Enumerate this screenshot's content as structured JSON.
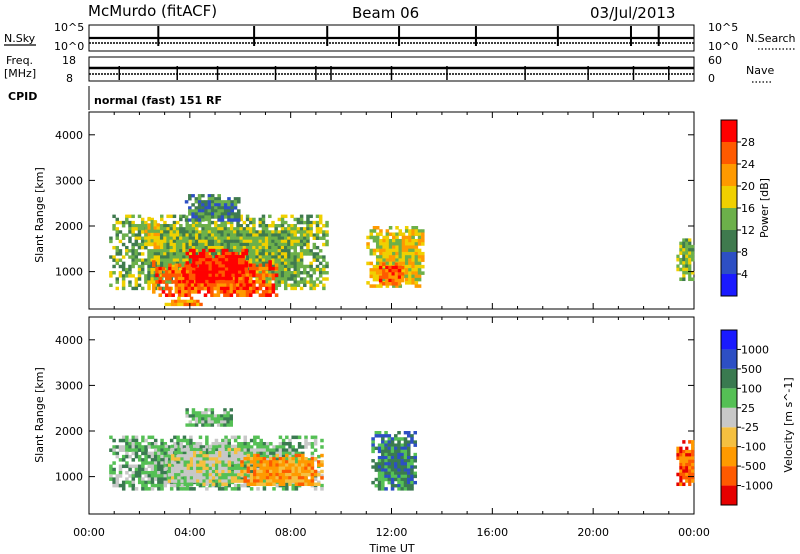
{
  "header": {
    "station": "McMurdo (fitACF)",
    "beam": "Beam 06",
    "date": "03/Jul/2013"
  },
  "status_panels": {
    "nsky_label": "N.Sky",
    "nsearch_label": "N.Search",
    "nsky_ticks": [
      "10^5",
      "10^0"
    ],
    "nsearch_ticks": [
      "10^5",
      "10^0"
    ],
    "freq_label": [
      "Freq.",
      "[MHz]"
    ],
    "freq_ticks": [
      "18",
      "8"
    ],
    "nave_label": "Nave",
    "nave_ticks": [
      "60",
      "0"
    ],
    "cpid_label": "CPID",
    "cpid_value": "normal (fast) 151 RF",
    "nsky_spike_hours": [
      2.75,
      6.55,
      9.45,
      12.3,
      15.35,
      18.6,
      21.5,
      22.6
    ],
    "nave_spike_hours": [
      1.2,
      3.5,
      5.1,
      7.4,
      9.0,
      9.6,
      12.0,
      14.2,
      17.3,
      19.8,
      21.6,
      23.0
    ]
  },
  "colors": {
    "power": [
      "#1a1aff",
      "#2d4fc4",
      "#3f7a4e",
      "#6cb04a",
      "#f0d000",
      "#ff9a00",
      "#ff5a00",
      "#ff0000"
    ],
    "velocity": [
      "#e60000",
      "#ff5a00",
      "#ff9a00",
      "#f5c040",
      "#c8c8c8",
      "#55c055",
      "#3a7a50",
      "#2d4fc4",
      "#1a1aff"
    ]
  },
  "chart_data": [
    {
      "type": "heatmap",
      "title": "Power",
      "ylabel": "Slant Range [km]",
      "xlabel": "",
      "xlim": [
        0,
        24
      ],
      "ylim": [
        180,
        4500
      ],
      "x_ticks": [
        "00:00",
        "04:00",
        "08:00",
        "12:00",
        "16:00",
        "20:00",
        "00:00"
      ],
      "y_ticks": [
        1000,
        2000,
        3000,
        4000
      ],
      "colorbar_label": "Power [dB]",
      "colorbar_ticks": [
        4,
        8,
        12,
        16,
        20,
        24,
        28
      ],
      "regions": [
        {
          "t0": 0.8,
          "t1": 9.5,
          "r0": 600,
          "r1": 2250,
          "level": 3
        },
        {
          "t0": 2.5,
          "t1": 7.5,
          "r0": 450,
          "r1": 1250,
          "level": 6
        },
        {
          "t0": 3.7,
          "t1": 6.3,
          "r0": 750,
          "r1": 1500,
          "level": 7
        },
        {
          "t0": 2.2,
          "t1": 2.8,
          "r0": 1500,
          "r1": 2200,
          "level": 4
        },
        {
          "t0": 3.8,
          "t1": 6.0,
          "r0": 2100,
          "r1": 2700,
          "level": 2
        },
        {
          "t0": 11.0,
          "t1": 13.3,
          "r0": 650,
          "r1": 2000,
          "level": 4
        },
        {
          "t0": 11.5,
          "t1": 12.5,
          "r0": 700,
          "r1": 1200,
          "level": 6
        },
        {
          "t0": 23.3,
          "t1": 24.0,
          "r0": 800,
          "r1": 1800,
          "level": 3
        },
        {
          "t0": 3.0,
          "t1": 4.5,
          "r0": 250,
          "r1": 450,
          "level": 5
        }
      ]
    },
    {
      "type": "heatmap",
      "title": "Velocity",
      "ylabel": "Slant Range [km]",
      "xlabel": "Time UT",
      "xlim": [
        0,
        24
      ],
      "ylim": [
        180,
        4500
      ],
      "x_ticks": [
        "00:00",
        "04:00",
        "08:00",
        "12:00",
        "16:00",
        "20:00",
        "00:00"
      ],
      "y_ticks": [
        1000,
        2000,
        3000,
        4000
      ],
      "colorbar_label": "Velocity [m s^-1]",
      "colorbar_ticks": [
        "1000",
        "500",
        "100",
        "25",
        "-25",
        "-100",
        "-500",
        "-1000"
      ],
      "regions": [
        {
          "t0": 0.8,
          "t1": 9.3,
          "r0": 700,
          "r1": 1900,
          "level": 5
        },
        {
          "t0": 3.0,
          "t1": 6.0,
          "r0": 800,
          "r1": 1700,
          "level": 4
        },
        {
          "t0": 6.0,
          "t1": 9.3,
          "r0": 800,
          "r1": 1500,
          "level": 2
        },
        {
          "t0": 3.7,
          "t1": 5.7,
          "r0": 2100,
          "r1": 2500,
          "level": 5
        },
        {
          "t0": 11.2,
          "t1": 13.0,
          "r0": 700,
          "r1": 2000,
          "level": 6
        },
        {
          "t0": 23.3,
          "t1": 24.0,
          "r0": 800,
          "r1": 1800,
          "level": 1
        }
      ]
    }
  ]
}
